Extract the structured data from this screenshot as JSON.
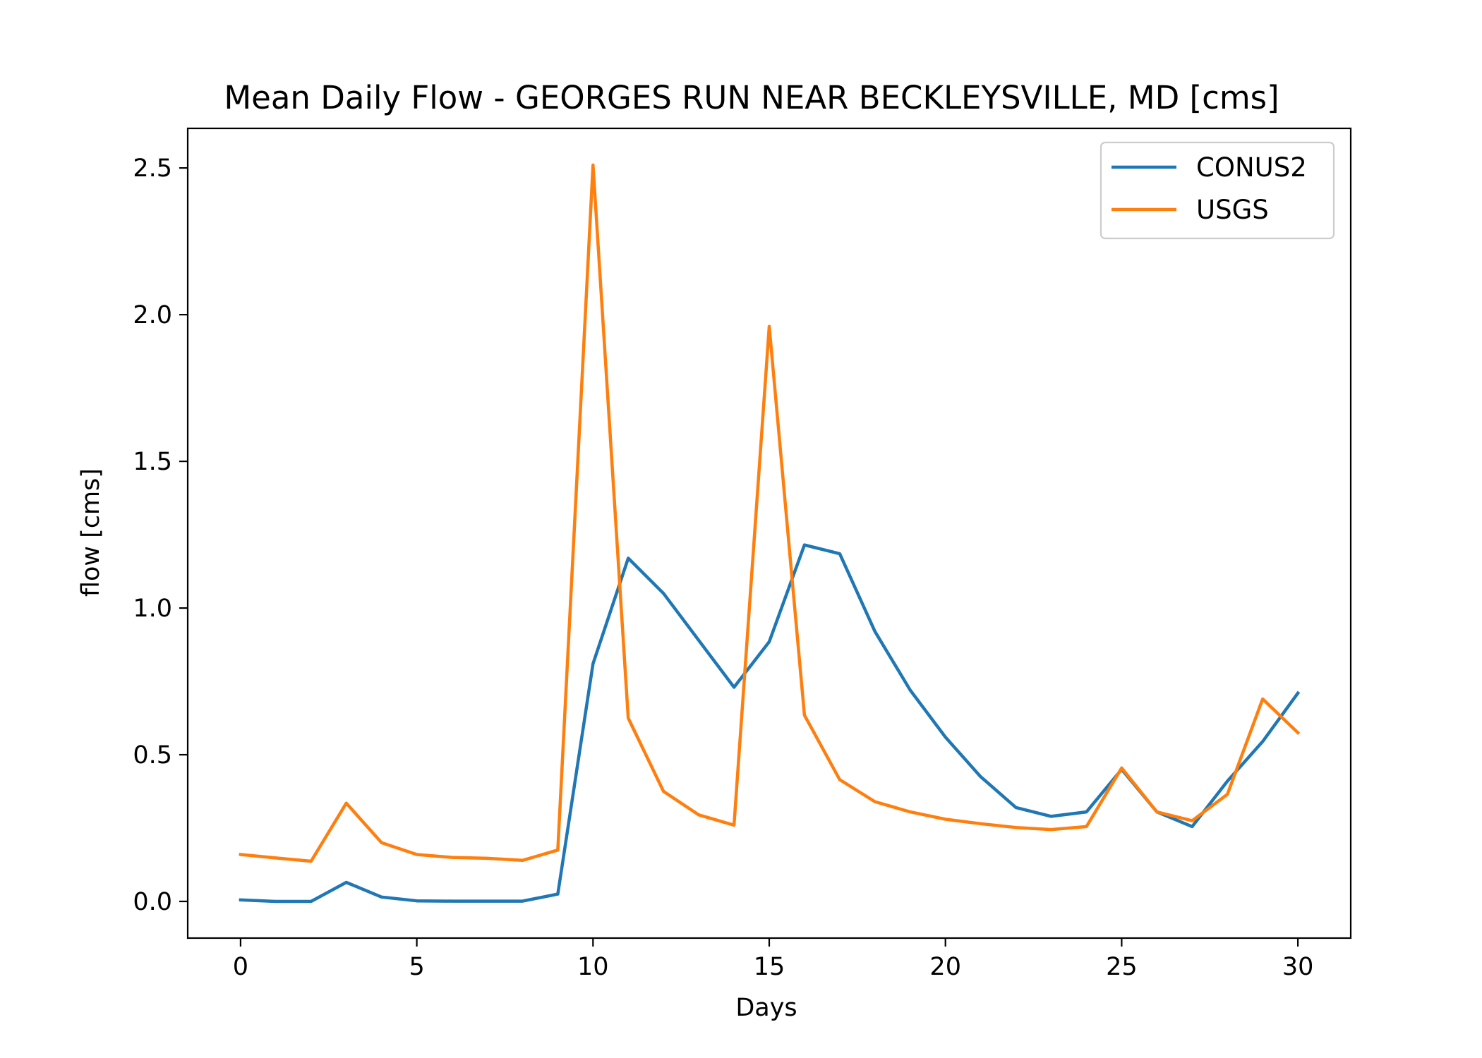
{
  "chart_data": {
    "type": "line",
    "title": "Mean Daily Flow - GEORGES RUN NEAR BECKLEYSVILLE, MD [cms]",
    "xlabel": "Days",
    "ylabel": "flow [cms]",
    "xlim": [
      -1.5,
      31.5
    ],
    "ylim": [
      -0.125,
      2.635
    ],
    "xticks": [
      0,
      5,
      10,
      15,
      20,
      25,
      30
    ],
    "xtick_labels": [
      "0",
      "5",
      "10",
      "15",
      "20",
      "25",
      "30"
    ],
    "yticks": [
      0.0,
      0.5,
      1.0,
      1.5,
      2.0,
      2.5
    ],
    "ytick_labels": [
      "0.0",
      "0.5",
      "1.0",
      "1.5",
      "2.0",
      "2.5"
    ],
    "grid": false,
    "legend_position": "top-right",
    "x": [
      0,
      1,
      2,
      3,
      4,
      5,
      6,
      7,
      8,
      9,
      10,
      11,
      12,
      13,
      14,
      15,
      16,
      17,
      18,
      19,
      20,
      21,
      22,
      23,
      24,
      25,
      26,
      27,
      28,
      29,
      30
    ],
    "series": [
      {
        "name": "CONUS2",
        "color": "#1f77b4",
        "values": [
          0.005,
          0.0,
          0.0,
          0.065,
          0.015,
          0.002,
          0.001,
          0.001,
          0.001,
          0.025,
          0.81,
          1.17,
          1.05,
          0.89,
          0.73,
          0.885,
          1.215,
          1.185,
          0.92,
          0.72,
          0.56,
          0.425,
          0.32,
          0.29,
          0.305,
          0.45,
          0.305,
          0.255,
          0.41,
          0.545,
          0.71
        ]
      },
      {
        "name": "USGS",
        "color": "#ff7f0e",
        "values": [
          0.16,
          0.148,
          0.137,
          0.335,
          0.2,
          0.16,
          0.15,
          0.147,
          0.14,
          0.175,
          2.51,
          0.625,
          0.375,
          0.295,
          0.26,
          1.96,
          0.635,
          0.415,
          0.34,
          0.305,
          0.28,
          0.265,
          0.252,
          0.245,
          0.255,
          0.455,
          0.305,
          0.275,
          0.365,
          0.69,
          0.575
        ]
      }
    ]
  }
}
